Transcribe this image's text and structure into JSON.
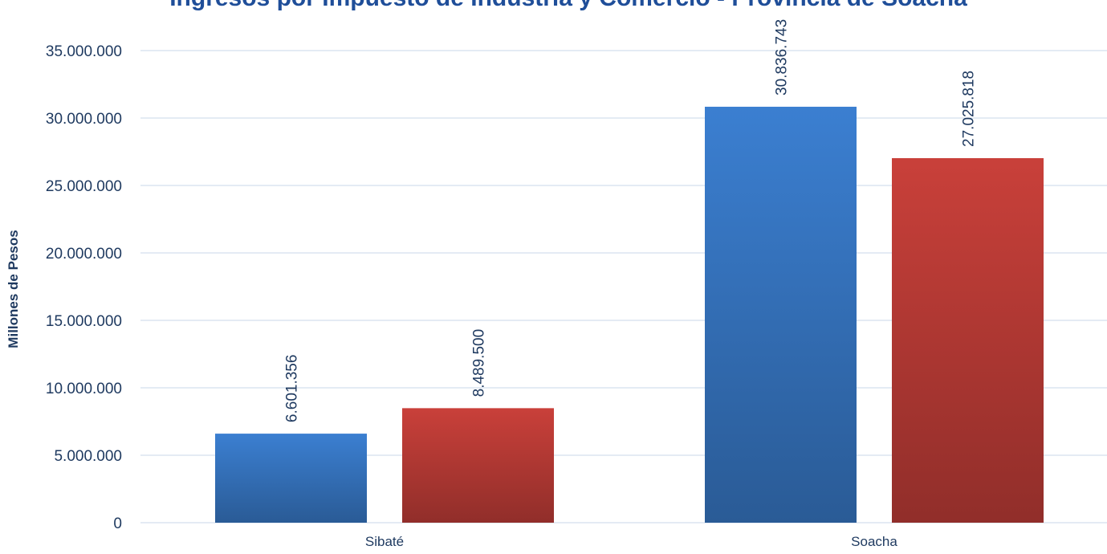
{
  "colors": {
    "series_blue": "#3b7fd1",
    "series_red": "#c9403a",
    "grid": "#c9d7ea",
    "text": "#1f3a60",
    "title": "#1f4e99"
  },
  "chart_data": {
    "type": "bar",
    "title": "Ingresos por Impuesto de Industria y Comercio - Provincia de Soacha",
    "xlabel": "",
    "ylabel": "Millones de Pesos",
    "categories": [
      "Sibaté",
      "Soacha"
    ],
    "series": [
      {
        "color": "#3b7fd1",
        "values": [
          6601356,
          30836743
        ],
        "labels": [
          "6.601.356",
          "30.836.743"
        ]
      },
      {
        "color": "#c9403a",
        "values": [
          8489500,
          27025818
        ],
        "labels": [
          "8.489.500",
          "27.025.818"
        ]
      }
    ],
    "ylim": [
      0,
      35000000
    ],
    "yticks": [
      0,
      5000000,
      10000000,
      15000000,
      20000000,
      25000000,
      30000000,
      35000000
    ],
    "ytick_labels": [
      "0",
      "5.000.000",
      "10.000.000",
      "15.000.000",
      "20.000.000",
      "25.000.000",
      "30.000.000",
      "35.000.000"
    ],
    "grid": true,
    "legend": "none"
  }
}
